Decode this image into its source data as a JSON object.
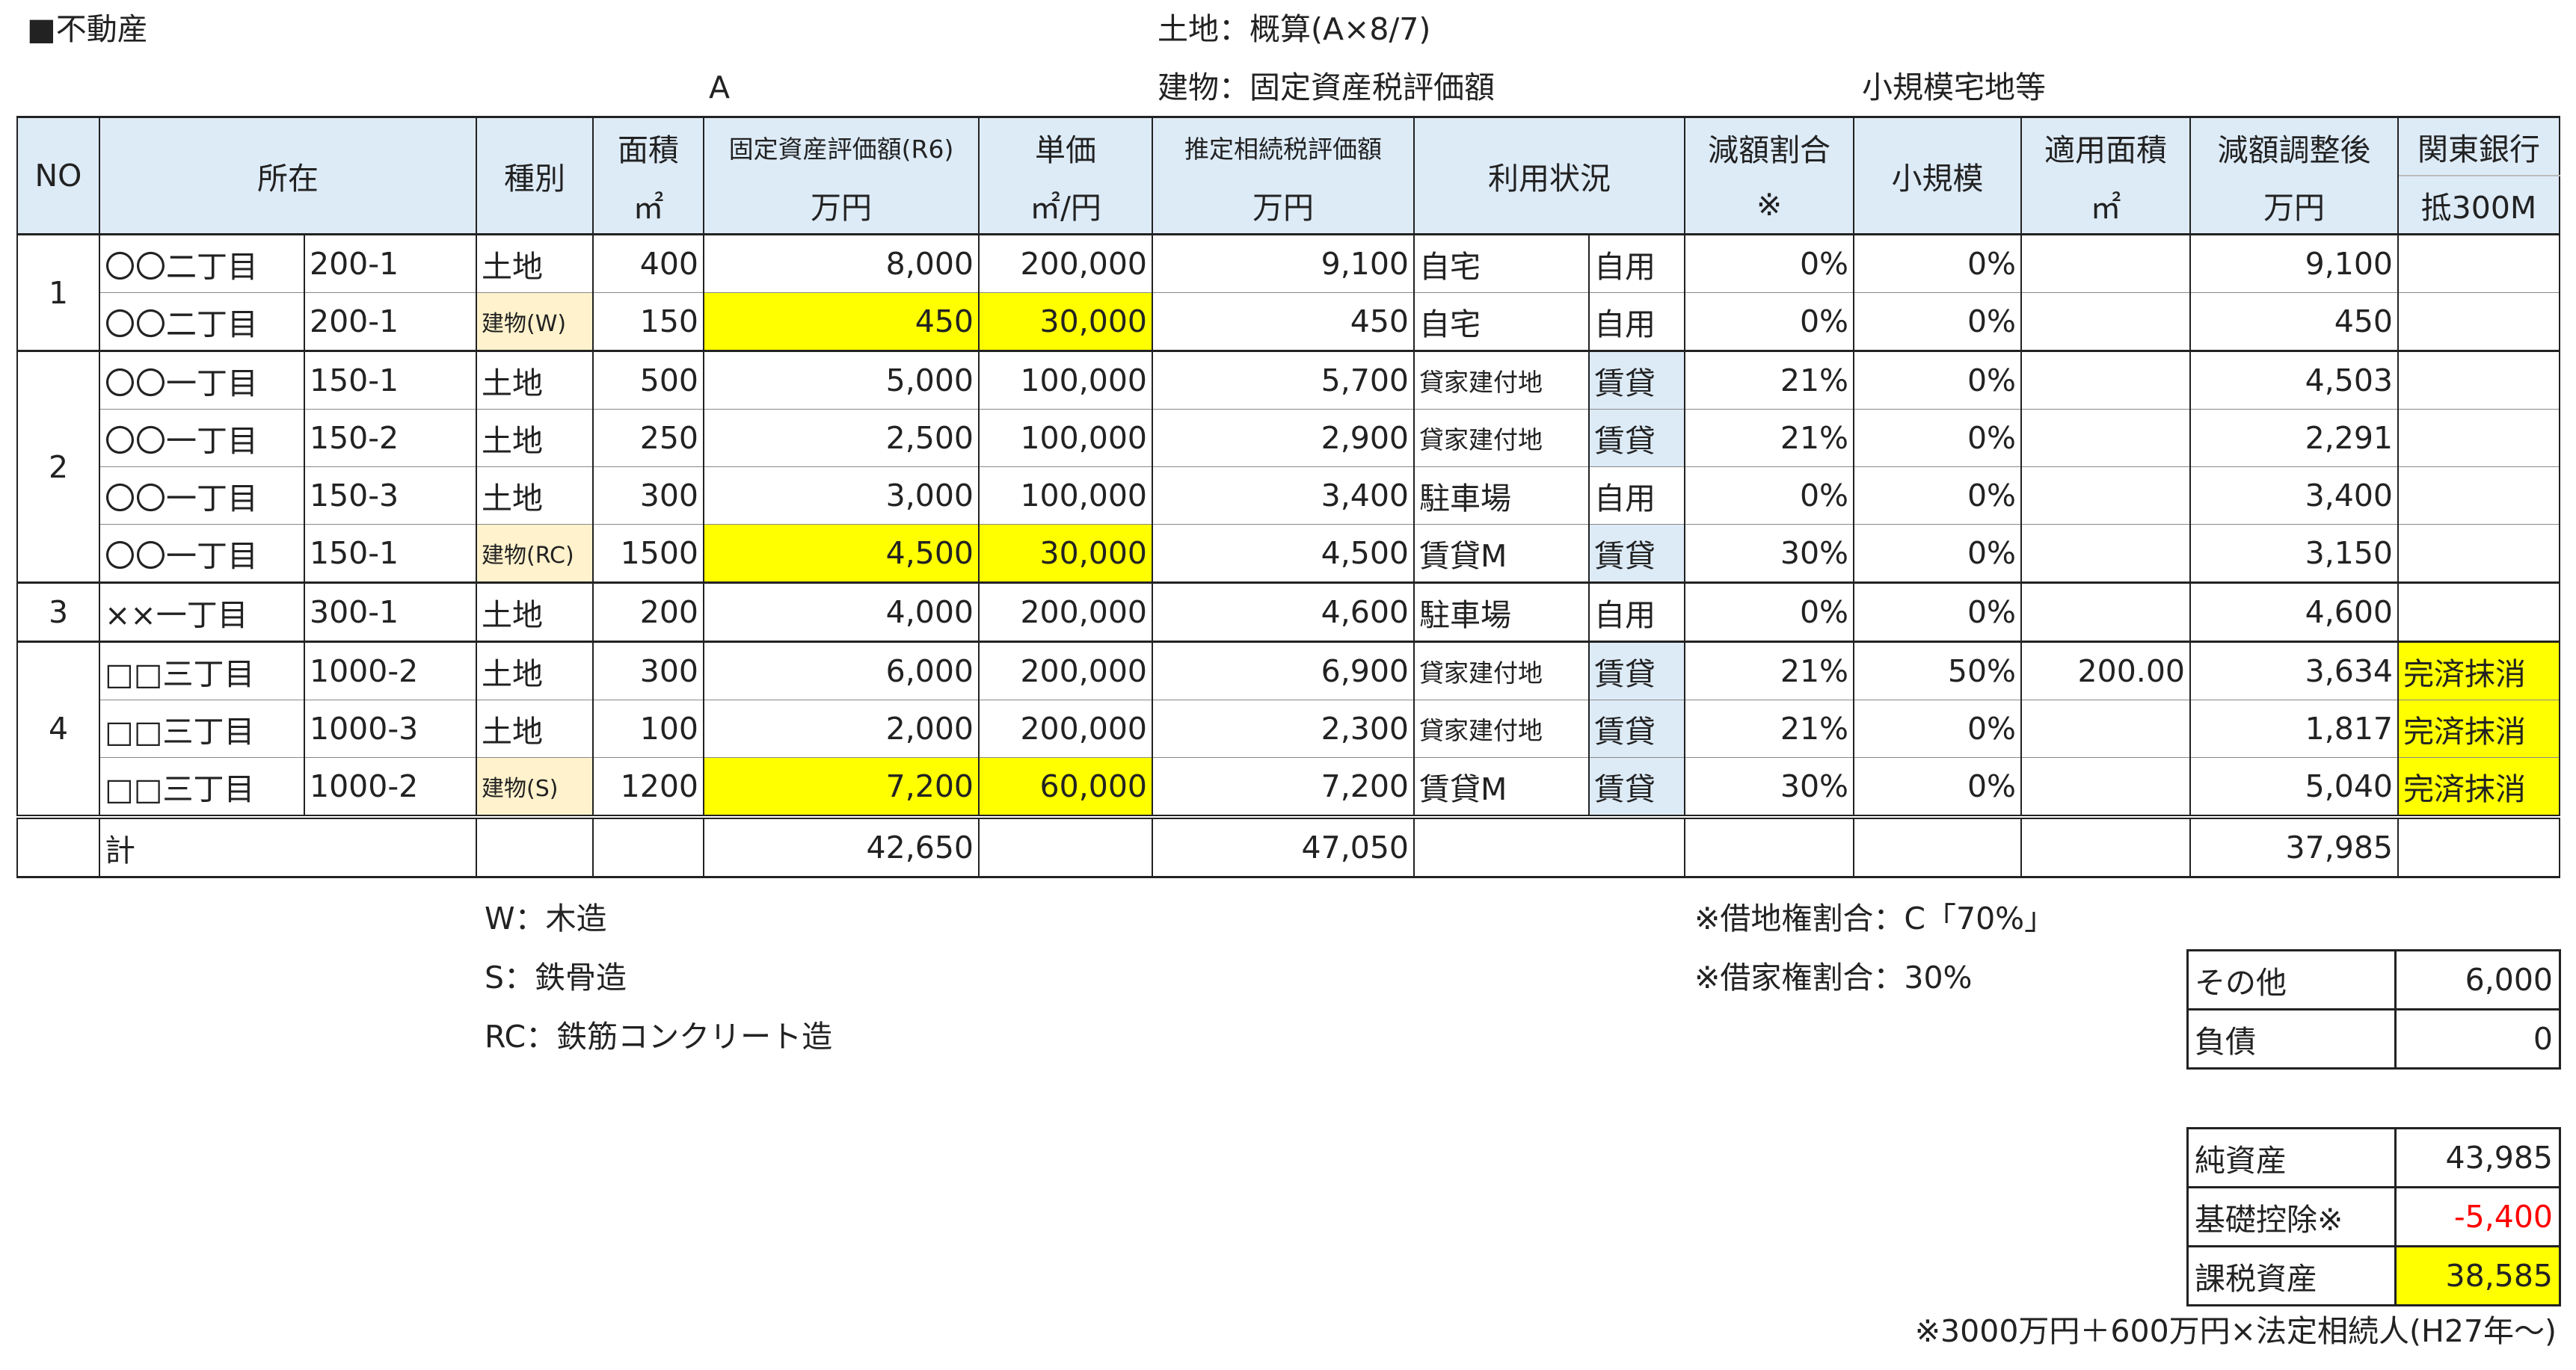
{
  "header": {
    "section_title": "■不動産",
    "note_land": "土地：概算(A×8/7)",
    "note_building": "建物：固定資産税評価額",
    "small_scale": "小規模宅地等",
    "marker_a": "A"
  },
  "table": {
    "headers": {
      "no": "NO",
      "location": "所在",
      "type": "種別",
      "area_top": "面積",
      "area_unit": "㎡",
      "fixed_top": "固定資産評価額(R6)",
      "fixed_unit": "万円",
      "unit_top": "単価",
      "unit_unit": "㎡/円",
      "inherit_top": "推定相続税評価額",
      "inherit_unit": "万円",
      "usage": "利用状況",
      "reduce_top": "減額割合",
      "reduce_unit": "※",
      "small": "小規模",
      "apply_top": "適用面積",
      "apply_unit": "㎡",
      "adjusted_top": "減額調整後",
      "adjusted_unit": "万円",
      "bank_top": "関東銀行",
      "bank_unit": "抵300M"
    },
    "groups": [
      {
        "no": "1",
        "rows": [
          {
            "loc": "〇〇二丁目",
            "lot": "200-1",
            "type": "土地",
            "area": "400",
            "fixed": "8,000",
            "unit": "200,000",
            "inherit": "9,100",
            "use1": "自宅",
            "use2": "自用",
            "reduce": "0%",
            "small": "0%",
            "apply": "",
            "adjusted": "9,100",
            "bank": ""
          },
          {
            "loc": "〇〇二丁目",
            "lot": "200-1",
            "type": "建物(W)",
            "area": "150",
            "fixed": "450",
            "unit": "30,000",
            "inherit": "450",
            "use1": "自宅",
            "use2": "自用",
            "reduce": "0%",
            "small": "0%",
            "apply": "",
            "adjusted": "450",
            "bank": ""
          }
        ]
      },
      {
        "no": "2",
        "rows": [
          {
            "loc": "〇〇一丁目",
            "lot": "150-1",
            "type": "土地",
            "area": "500",
            "fixed": "5,000",
            "unit": "100,000",
            "inherit": "5,700",
            "use1": "貸家建付地",
            "use2": "賃貸",
            "reduce": "21%",
            "small": "0%",
            "apply": "",
            "adjusted": "4,503",
            "bank": ""
          },
          {
            "loc": "〇〇一丁目",
            "lot": "150-2",
            "type": "土地",
            "area": "250",
            "fixed": "2,500",
            "unit": "100,000",
            "inherit": "2,900",
            "use1": "貸家建付地",
            "use2": "賃貸",
            "reduce": "21%",
            "small": "0%",
            "apply": "",
            "adjusted": "2,291",
            "bank": ""
          },
          {
            "loc": "〇〇一丁目",
            "lot": "150-3",
            "type": "土地",
            "area": "300",
            "fixed": "3,000",
            "unit": "100,000",
            "inherit": "3,400",
            "use1": "駐車場",
            "use2": "自用",
            "reduce": "0%",
            "small": "0%",
            "apply": "",
            "adjusted": "3,400",
            "bank": ""
          },
          {
            "loc": "〇〇一丁目",
            "lot": "150-1",
            "type": "建物(RC)",
            "area": "1500",
            "fixed": "4,500",
            "unit": "30,000",
            "inherit": "4,500",
            "use1": "賃貸M",
            "use2": "賃貸",
            "reduce": "30%",
            "small": "0%",
            "apply": "",
            "adjusted": "3,150",
            "bank": ""
          }
        ]
      },
      {
        "no": "3",
        "rows": [
          {
            "loc": "××一丁目",
            "lot": "300-1",
            "type": "土地",
            "area": "200",
            "fixed": "4,000",
            "unit": "200,000",
            "inherit": "4,600",
            "use1": "駐車場",
            "use2": "自用",
            "reduce": "0%",
            "small": "0%",
            "apply": "",
            "adjusted": "4,600",
            "bank": ""
          }
        ]
      },
      {
        "no": "4",
        "rows": [
          {
            "loc": "□□三丁目",
            "lot": "1000-2",
            "type": "土地",
            "area": "300",
            "fixed": "6,000",
            "unit": "200,000",
            "inherit": "6,900",
            "use1": "貸家建付地",
            "use2": "賃貸",
            "reduce": "21%",
            "small": "50%",
            "apply": "200.00",
            "adjusted": "3,634",
            "bank": "完済抹消"
          },
          {
            "loc": "□□三丁目",
            "lot": "1000-3",
            "type": "土地",
            "area": "100",
            "fixed": "2,000",
            "unit": "200,000",
            "inherit": "2,300",
            "use1": "貸家建付地",
            "use2": "賃貸",
            "reduce": "21%",
            "small": "0%",
            "apply": "",
            "adjusted": "1,817",
            "bank": "完済抹消"
          },
          {
            "loc": "□□三丁目",
            "lot": "1000-2",
            "type": "建物(S)",
            "area": "1200",
            "fixed": "7,200",
            "unit": "60,000",
            "inherit": "7,200",
            "use1": "賃貸M",
            "use2": "賃貸",
            "reduce": "30%",
            "small": "0%",
            "apply": "",
            "adjusted": "5,040",
            "bank": "完済抹消"
          }
        ]
      }
    ],
    "total": {
      "label": "計",
      "fixed": "42,650",
      "inherit": "47,050",
      "adjusted": "37,985"
    }
  },
  "legend": {
    "w": "W：木造",
    "s": "S：鉄骨造",
    "rc": "RC：鉄筋コンクリート造",
    "leasehold": "※借地権割合：C「70%」",
    "tenant": "※借家権割合：30%"
  },
  "other_table": [
    {
      "label": "その他",
      "value": "6,000"
    },
    {
      "label": "負債",
      "value": "0"
    }
  ],
  "summary_table": {
    "net_assets_label": "純資産",
    "net_assets": "43,985",
    "deduction_label": "基礎控除※",
    "deduction": "-5,400",
    "taxable_label": "課税資産",
    "taxable": "38,585"
  },
  "footnote": "※3000万円＋600万円×法定相続人(H27年〜)",
  "colors": {
    "header_bg": "#ddebf7",
    "highlight": "#ffff00",
    "building_tag": "#fff2cc",
    "negative": "#ff0000"
  }
}
